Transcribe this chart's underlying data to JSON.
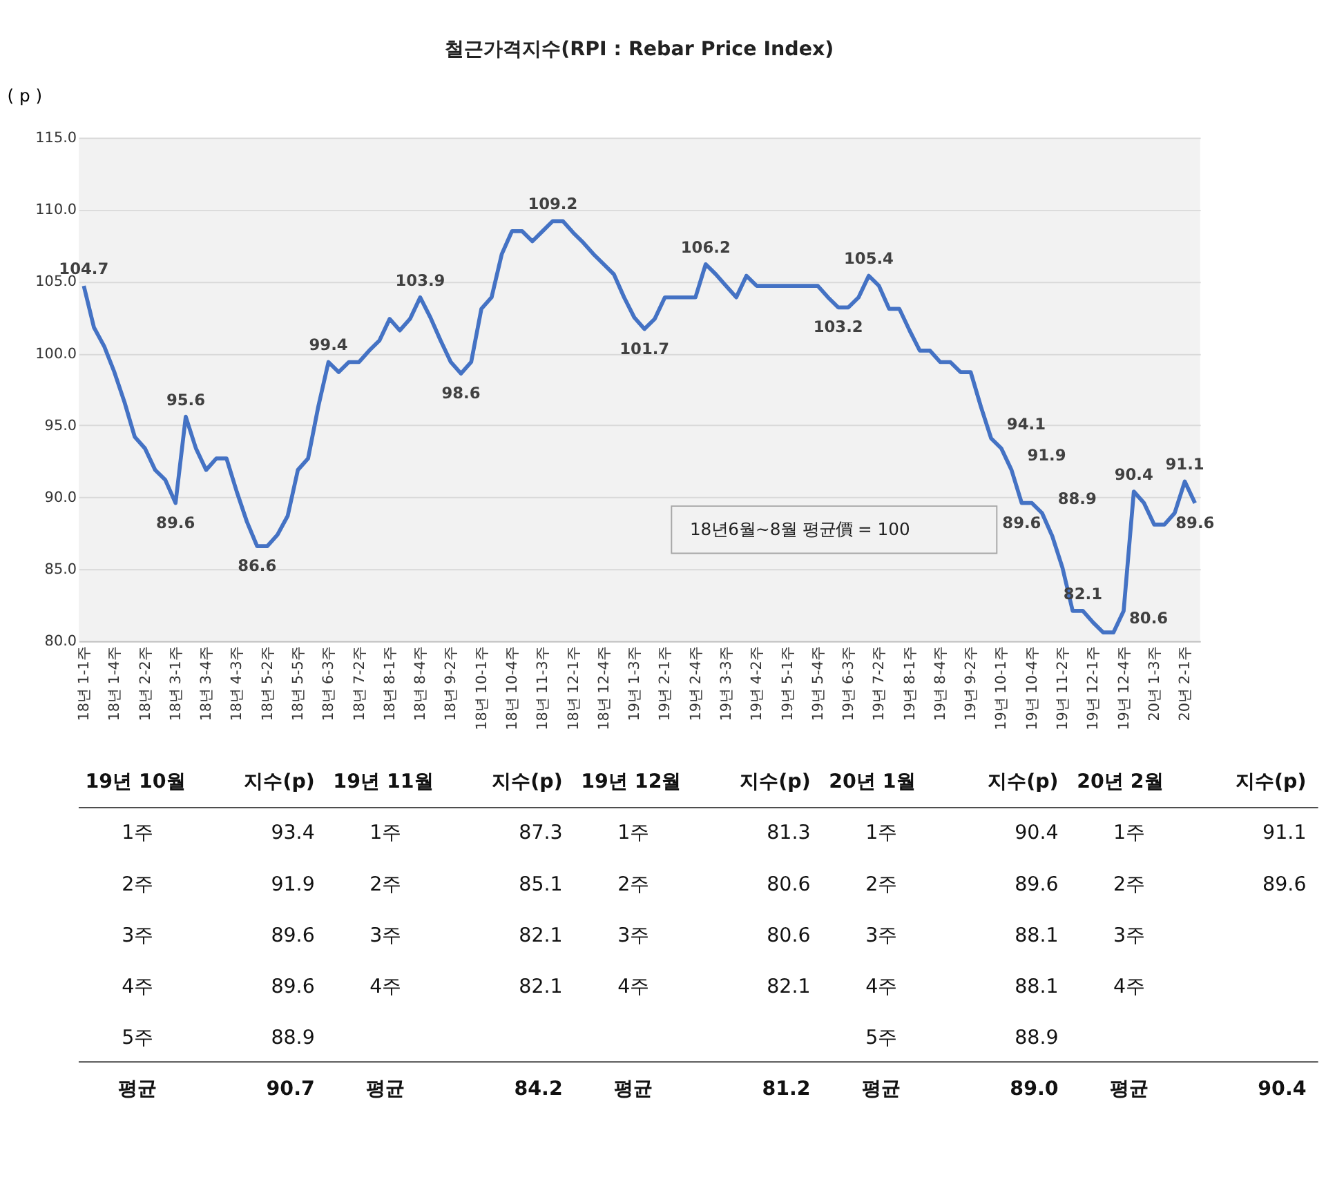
{
  "chart_data": {
    "type": "line",
    "title": "철근가격지수(RPI : Rebar Price Index)",
    "ylabel": "( p )",
    "categories": [
      "18년 1-1주",
      null,
      null,
      "18년 1-4주",
      null,
      null,
      "18년 2-2주",
      null,
      null,
      "18년 3-1주",
      null,
      null,
      "18년 3-4주",
      null,
      null,
      "18년 4-3주",
      null,
      null,
      "18년 5-2주",
      null,
      null,
      "18년 5-5주",
      null,
      null,
      "18년 6-3주",
      null,
      null,
      "18년 7-2주",
      null,
      null,
      "18년 8-1주",
      null,
      null,
      "18년 8-4주",
      null,
      null,
      "18년 9-2주",
      null,
      null,
      "18년 10-1주",
      null,
      null,
      "18년 10-4주",
      null,
      null,
      "18년 11-3주",
      null,
      null,
      "18년 12-1주",
      null,
      null,
      "18년 12-4주",
      null,
      null,
      "19년 1-3주",
      null,
      null,
      "19년 2-1주",
      null,
      null,
      "19년 2-4주",
      null,
      null,
      "19년 3-3주",
      null,
      null,
      "19년 4-2주",
      null,
      null,
      "19년 5-1주",
      null,
      null,
      "19년 5-4주",
      null,
      null,
      "19년 6-3주",
      null,
      null,
      "19년 7-2주",
      null,
      null,
      "19년 8-1주",
      null,
      null,
      "19년 8-4주",
      null,
      null,
      "19년 9-2주",
      null,
      null,
      "19년 10-1주",
      null,
      null,
      "19년 10-4주",
      null,
      null,
      "19년 11-2주",
      null,
      null,
      "19년 12-1주",
      null,
      null,
      "19년 12-4주",
      null,
      null,
      "20년 1-3주",
      null,
      null,
      "20년 2-1주",
      null
    ],
    "values": [
      104.7,
      101.8,
      100.5,
      98.7,
      96.6,
      94.2,
      93.4,
      91.9,
      91.2,
      89.6,
      95.6,
      93.4,
      91.9,
      92.7,
      92.7,
      90.4,
      88.3,
      86.6,
      86.6,
      87.4,
      88.7,
      91.9,
      92.7,
      96.3,
      99.4,
      98.7,
      99.4,
      99.4,
      100.2,
      100.9,
      102.4,
      101.6,
      102.4,
      103.9,
      102.5,
      100.9,
      99.4,
      98.6,
      99.4,
      103.1,
      103.9,
      106.9,
      108.5,
      108.5,
      107.8,
      108.5,
      109.2,
      109.2,
      108.4,
      107.7,
      106.9,
      106.2,
      105.5,
      103.9,
      102.5,
      101.7,
      102.4,
      103.9,
      103.9,
      103.9,
      103.9,
      106.2,
      105.5,
      104.7,
      103.9,
      105.4,
      104.7,
      104.7,
      104.7,
      104.7,
      104.7,
      104.7,
      104.7,
      103.9,
      103.2,
      103.2,
      103.9,
      105.4,
      104.7,
      103.1,
      103.1,
      101.6,
      100.2,
      100.2,
      99.4,
      99.4,
      98.7,
      98.7,
      96.3,
      94.1,
      93.4,
      91.9,
      89.6,
      89.6,
      88.9,
      87.3,
      85.1,
      82.1,
      82.1,
      81.3,
      80.6,
      80.6,
      82.1,
      90.4,
      89.6,
      88.1,
      88.1,
      88.9,
      91.1,
      89.6
    ],
    "value_labels": [
      "104.7",
      null,
      null,
      null,
      null,
      null,
      null,
      null,
      null,
      "89.6",
      "95.6",
      null,
      null,
      null,
      null,
      null,
      null,
      "86.6",
      null,
      null,
      null,
      null,
      null,
      null,
      "99.4",
      null,
      null,
      null,
      null,
      null,
      null,
      null,
      null,
      "103.9",
      null,
      null,
      null,
      "98.6",
      null,
      null,
      null,
      null,
      null,
      null,
      null,
      null,
      "109.2",
      null,
      null,
      null,
      null,
      null,
      null,
      null,
      null,
      "101.7",
      null,
      null,
      null,
      null,
      null,
      "106.2",
      null,
      null,
      null,
      null,
      null,
      null,
      null,
      null,
      null,
      null,
      null,
      null,
      "103.2",
      null,
      null,
      "105.4",
      null,
      null,
      null,
      null,
      null,
      null,
      null,
      null,
      null,
      null,
      null,
      "94.1",
      null,
      "91.9",
      "89.6",
      null,
      "88.9",
      null,
      null,
      null,
      "82.1",
      null,
      null,
      "80.6",
      null,
      "90.4",
      null,
      null,
      null,
      null,
      "91.1",
      "89.6"
    ],
    "color": "#4472c4",
    "ylim": [
      80,
      115
    ],
    "yticks": [
      {
        "value": 80,
        "label": "80.0"
      },
      {
        "value": 85,
        "label": "85.0"
      },
      {
        "value": 90,
        "label": "90.0"
      },
      {
        "value": 95,
        "label": "95.0"
      },
      {
        "value": 100,
        "label": "100.0"
      },
      {
        "value": 105,
        "label": "105.0"
      },
      {
        "value": 110,
        "label": "110.0"
      },
      {
        "value": 115,
        "label": "115.0"
      }
    ],
    "grid": "y",
    "annotations": [
      "18년6월~8월 평균價 = 100",
      "19년 10월\n1주\n2주\n3주\n4주\n5주\n평균",
      "지수(p)\n93.4\n91.9\n89.6\n89.6\n88.9\n90.7",
      "19년 11월\n1주\n2주\n3주\n4주\n\n평균",
      "지수(p)\n87.3\n85.1\n82.1\n82.1\n\n84.2",
      "19년 12월\n1주\n2주\n3주\n4주\n\n평균",
      "지수(p)\n81.3\n80.6\n80.6\n82.1\n\n81.2",
      "20년 1월\n1주\n2주\n3주\n4주\n5주\n평균",
      "지수(p)\n90.4\n89.6\n88.1\n88.1\n88.9\n89.0",
      "20년 2월\n1주\n2주\n3주\n4주\n\n평균",
      "지수(p)\n91.1\n89.6\n\n\n\n90.4"
    ]
  }
}
